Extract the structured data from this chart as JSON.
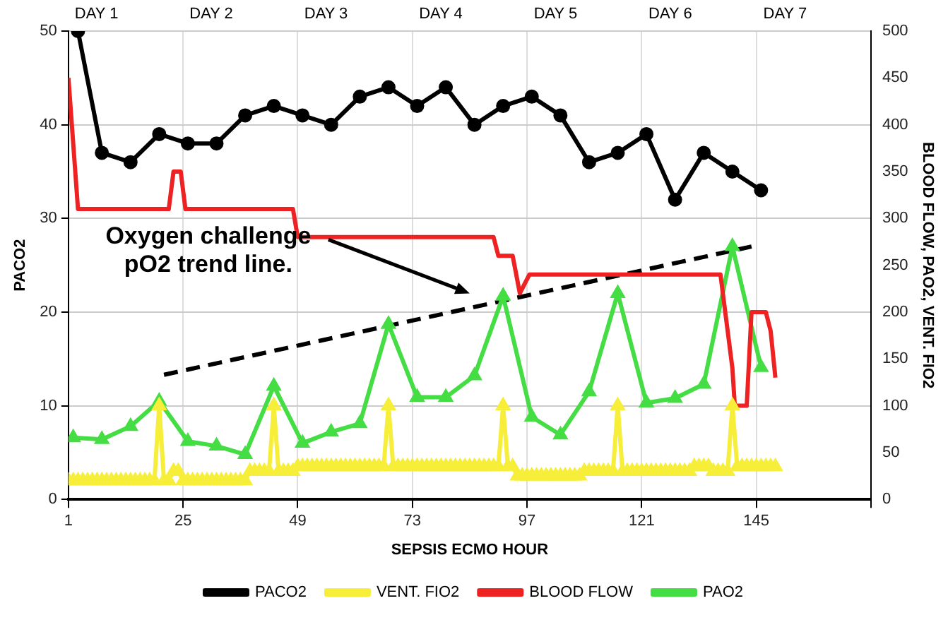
{
  "chart_data": {
    "type": "line",
    "xlabel": "SEPSIS ECMO HOUR",
    "ylabel": "PACO2",
    "y2label": "BLOOD FLOW, PAO2, VENT. FIO2",
    "xlim": [
      1,
      169
    ],
    "xticks": [
      1,
      25,
      49,
      73,
      97,
      121,
      145,
      {
        "value": 169,
        "label": null
      }
    ],
    "ylim": [
      0,
      50
    ],
    "yticks": [
      0,
      10,
      20,
      30,
      40,
      50
    ],
    "y2lim": [
      0,
      500
    ],
    "y2ticks": [
      0,
      50,
      100,
      150,
      200,
      250,
      300,
      350,
      400,
      450,
      500
    ],
    "grid": true,
    "legend": "bottom",
    "series": [
      {
        "name": "PACO2",
        "color": "#000000",
        "marker": "circle",
        "x": [
          3,
          8,
          14,
          20,
          26,
          32,
          38,
          44,
          50,
          56,
          62,
          68,
          74,
          80,
          86,
          92,
          98,
          104,
          110,
          116,
          122,
          128,
          134,
          140,
          146
        ],
        "values": [
          50,
          37,
          36,
          39,
          38,
          38,
          41,
          42,
          41,
          40,
          43,
          44,
          42,
          44,
          40,
          42,
          43,
          41,
          36,
          37,
          39,
          32,
          37,
          35,
          33
        ]
      },
      {
        "name": "VENT. FIO2",
        "color": "#f7ee3a",
        "marker": "triangle",
        "axis": "y2",
        "x": [
          1,
          2,
          3,
          4,
          5,
          6,
          7,
          8,
          9,
          10,
          11,
          12,
          13,
          14,
          15,
          16,
          17,
          18,
          19,
          20,
          21,
          22,
          23,
          24,
          25,
          26,
          27,
          28,
          29,
          30,
          31,
          32,
          33,
          34,
          35,
          36,
          37,
          38,
          39,
          40,
          41,
          42,
          43,
          44,
          45,
          46,
          47,
          48,
          49,
          50,
          51,
          52,
          53,
          54,
          55,
          56,
          57,
          58,
          59,
          60,
          61,
          62,
          63,
          64,
          65,
          66,
          67,
          68,
          69,
          70,
          71,
          72,
          73,
          74,
          75,
          76,
          77,
          78,
          79,
          80,
          81,
          82,
          83,
          84,
          85,
          86,
          87,
          88,
          89,
          90,
          91,
          92,
          93,
          94,
          95,
          96,
          97,
          98,
          99,
          100,
          101,
          102,
          103,
          104,
          105,
          106,
          107,
          108,
          109,
          110,
          111,
          112,
          113,
          114,
          115,
          116,
          117,
          118,
          119,
          120,
          121,
          122,
          123,
          124,
          125,
          126,
          127,
          128,
          129,
          130,
          131,
          132,
          133,
          134,
          135,
          136,
          137,
          138,
          139,
          140,
          141,
          142,
          143,
          144,
          145,
          146,
          147,
          148,
          149
        ],
        "values": [
          20,
          20,
          20,
          20,
          20,
          20,
          20,
          20,
          20,
          20,
          20,
          20,
          20,
          20,
          20,
          20,
          20,
          20,
          20,
          100,
          20,
          20,
          30,
          30,
          20,
          20,
          20,
          20,
          20,
          20,
          20,
          20,
          20,
          20,
          20,
          20,
          20,
          20,
          30,
          30,
          30,
          30,
          30,
          100,
          30,
          30,
          30,
          30,
          35,
          35,
          35,
          35,
          35,
          35,
          35,
          35,
          35,
          35,
          35,
          35,
          35,
          35,
          35,
          35,
          35,
          35,
          35,
          100,
          35,
          35,
          35,
          35,
          35,
          35,
          35,
          35,
          35,
          35,
          35,
          35,
          35,
          35,
          35,
          35,
          35,
          35,
          35,
          35,
          35,
          35,
          35,
          100,
          35,
          35,
          25,
          25,
          25,
          25,
          25,
          25,
          25,
          25,
          25,
          25,
          25,
          25,
          25,
          25,
          30,
          30,
          30,
          30,
          30,
          30,
          30,
          100,
          30,
          30,
          30,
          30,
          30,
          30,
          30,
          30,
          30,
          30,
          30,
          30,
          30,
          30,
          30,
          35,
          35,
          35,
          35,
          30,
          30,
          30,
          30,
          100,
          35,
          35,
          35,
          35,
          35,
          35,
          35,
          35,
          35
        ]
      },
      {
        "name": "BLOOD FLOW",
        "color": "#ee2222",
        "marker": "none",
        "axis": "y2",
        "x": [
          1,
          3,
          22,
          23,
          24.5,
          25.5,
          48,
          49,
          90,
          91,
          94,
          95.5,
          97.5,
          137.5,
          139,
          140,
          140.5,
          143,
          144,
          147,
          148,
          149
        ],
        "values": [
          450,
          310,
          310,
          350,
          350,
          310,
          310,
          280,
          280,
          260,
          260,
          220,
          240,
          240,
          180,
          140,
          100,
          100,
          200,
          200,
          180,
          130
        ]
      },
      {
        "name": "PAO2",
        "color": "#44dd44",
        "marker": "triangle",
        "axis": "y2",
        "x": [
          2,
          8,
          14,
          20,
          26,
          32,
          38,
          44,
          50,
          56,
          62,
          68,
          74,
          80,
          86,
          92,
          98,
          104,
          110,
          116,
          122,
          128,
          134,
          140,
          146
        ],
        "values": [
          66,
          64,
          78,
          105,
          62,
          57,
          48,
          121,
          60,
          72,
          81,
          187,
          109,
          109,
          132,
          217,
          88,
          69,
          115,
          220,
          103,
          108,
          123,
          270,
          141
        ]
      },
      {
        "color": "#000000",
        "marker": "none",
        "line_style": "dashed",
        "axis": "y2",
        "x": [
          21,
          144
        ],
        "values": [
          133,
          270
        ]
      }
    ],
    "annotations": [
      "DAY 1",
      "DAY 2",
      "DAY 3",
      "DAY 4",
      "DAY 5",
      "DAY 6",
      "DAY 7",
      "Oxygen challenge\npO2 trend line."
    ]
  }
}
